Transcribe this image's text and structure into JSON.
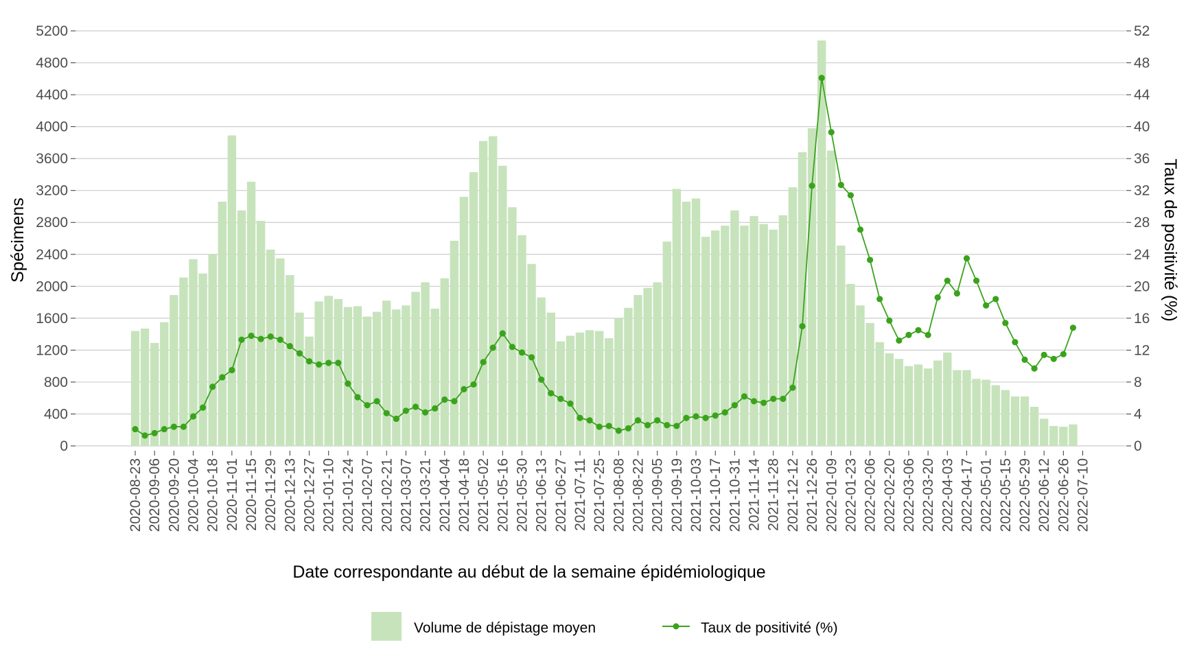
{
  "chart_data": {
    "type": "bar",
    "xlabel": "Date correspondante au début de la semaine épidémiologique",
    "ylabel_left": "Spécimens",
    "ylabel_right": "Taux de positivité (%)",
    "ylim_left": [
      0,
      5200
    ],
    "ylim_right": [
      0,
      52
    ],
    "yticks_left": [
      "0",
      "400",
      "800",
      "1200",
      "1600",
      "2000",
      "2400",
      "2800",
      "3200",
      "3600",
      "4000",
      "4400",
      "4800",
      "5200"
    ],
    "yticks_right": [
      "0",
      "4",
      "8",
      "12",
      "16",
      "20",
      "24",
      "28",
      "32",
      "36",
      "40",
      "44",
      "48",
      "52"
    ],
    "grid": true,
    "legend_position": "bottom",
    "tick_labels": [
      "2020-08-23",
      "2020-09-06",
      "2020-09-20",
      "2020-10-04",
      "2020-10-18",
      "2020-11-01",
      "2020-11-15",
      "2020-11-29",
      "2020-12-13",
      "2020-12-27",
      "2021-01-10",
      "2021-01-24",
      "2021-02-07",
      "2021-02-21",
      "2021-03-07",
      "2021-03-21",
      "2021-04-04",
      "2021-04-18",
      "2021-05-02",
      "2021-05-16",
      "2021-05-30",
      "2021-06-13",
      "2021-06-27",
      "2021-07-11",
      "2021-07-25",
      "2021-08-08",
      "2021-08-22",
      "2021-09-05",
      "2021-09-19",
      "2021-10-03",
      "2021-10-17",
      "2021-10-31",
      "2021-11-14",
      "2021-11-28",
      "2021-12-12",
      "2021-12-26",
      "2022-01-09",
      "2022-01-23",
      "2022-02-06",
      "2022-02-20",
      "2022-03-06",
      "2022-03-20",
      "2022-04-03",
      "2022-04-17",
      "2022-05-01",
      "2022-05-15",
      "2022-05-29",
      "2022-06-12",
      "2022-06-26",
      "2022-07-10"
    ],
    "series": [
      {
        "name": "Volume de dépistage moyen",
        "kind": "bar",
        "axis": "left",
        "color": "#c7e3bc",
        "values": [
          1440,
          1470,
          1290,
          1550,
          1890,
          2110,
          2340,
          2160,
          2400,
          3060,
          3890,
          2950,
          3310,
          2820,
          2460,
          2350,
          2140,
          1670,
          1370,
          1810,
          1880,
          1840,
          1740,
          1750,
          1620,
          1680,
          1820,
          1710,
          1760,
          1930,
          2050,
          1720,
          2100,
          2570,
          3120,
          3430,
          3820,
          3880,
          3510,
          2990,
          2640,
          2280,
          1860,
          1670,
          1310,
          1380,
          1420,
          1450,
          1440,
          1350,
          1600,
          1730,
          1890,
          1980,
          2050,
          2560,
          3220,
          3060,
          3100,
          2620,
          2700,
          2760,
          2950,
          2760,
          2880,
          2780,
          2710,
          2890,
          3240,
          3680,
          3980,
          5080,
          3700,
          2510,
          2030,
          1760,
          1540,
          1300,
          1160,
          1090,
          1000,
          1020,
          970,
          1070,
          1170,
          950,
          950,
          840,
          830,
          760,
          700,
          620,
          620,
          490,
          340,
          250,
          240,
          270
        ]
      },
      {
        "name": "Taux de positivité (%)",
        "kind": "line",
        "axis": "right",
        "color": "#3aa31c",
        "values": [
          2.1,
          1.3,
          1.6,
          2.1,
          2.4,
          2.4,
          3.7,
          4.8,
          7.4,
          8.6,
          9.5,
          13.3,
          13.8,
          13.4,
          13.7,
          13.3,
          12.5,
          11.6,
          10.6,
          10.2,
          10.4,
          10.4,
          7.8,
          6.1,
          5.1,
          5.6,
          4.1,
          3.4,
          4.4,
          4.9,
          4.2,
          4.7,
          5.8,
          5.6,
          7.1,
          7.7,
          10.5,
          12.3,
          14.1,
          12.4,
          11.7,
          11.1,
          8.3,
          6.6,
          5.9,
          5.3,
          3.5,
          3.2,
          2.4,
          2.5,
          1.9,
          2.2,
          3.2,
          2.6,
          3.2,
          2.6,
          2.5,
          3.5,
          3.7,
          3.5,
          3.8,
          4.2,
          5.1,
          6.2,
          5.6,
          5.4,
          5.9,
          5.9,
          7.3,
          15.0,
          32.6,
          46.1,
          39.3,
          32.7,
          31.4,
          27.1,
          23.3,
          18.4,
          15.7,
          13.2,
          13.9,
          14.5,
          13.9,
          18.6,
          20.7,
          19.1,
          23.5,
          20.7,
          17.6,
          18.4,
          15.4,
          13.0,
          10.8,
          9.7,
          11.4,
          10.9,
          11.5,
          14.8
        ]
      }
    ]
  }
}
